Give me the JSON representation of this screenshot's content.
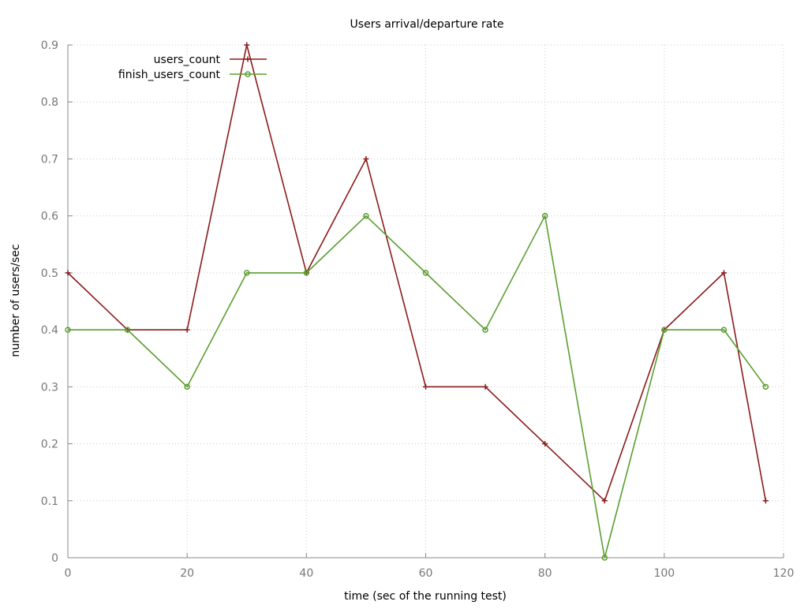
{
  "chart_data": {
    "type": "line",
    "title": "Users arrival/departure rate",
    "xlabel": "time (sec of the running test)",
    "ylabel": "number of users/sec",
    "xlim": [
      0,
      120
    ],
    "ylim": [
      0,
      0.9
    ],
    "xticks": [
      0,
      20,
      40,
      60,
      80,
      100,
      120
    ],
    "yticks": [
      0,
      0.1,
      0.2,
      0.3,
      0.4,
      0.5,
      0.6,
      0.7,
      0.8,
      0.9
    ],
    "grid": true,
    "legend_position": "top-left",
    "series": [
      {
        "name": "users_count",
        "color": "#8b1a1a",
        "marker": "plus",
        "x": [
          0,
          10,
          20,
          30,
          40,
          50,
          60,
          70,
          80,
          90,
          100,
          110,
          117
        ],
        "y": [
          0.5,
          0.4,
          0.4,
          0.9,
          0.5,
          0.7,
          0.3,
          0.3,
          0.2,
          0.1,
          0.4,
          0.5,
          0.1
        ]
      },
      {
        "name": "finish_users_count",
        "color": "#5a9e2f",
        "marker": "circle",
        "x": [
          0,
          10,
          20,
          30,
          40,
          50,
          60,
          70,
          80,
          90,
          100,
          110,
          117
        ],
        "y": [
          0.4,
          0.4,
          0.3,
          0.5,
          0.5,
          0.6,
          0.5,
          0.4,
          0.6,
          0.0,
          0.4,
          0.4,
          0.3
        ]
      }
    ]
  }
}
